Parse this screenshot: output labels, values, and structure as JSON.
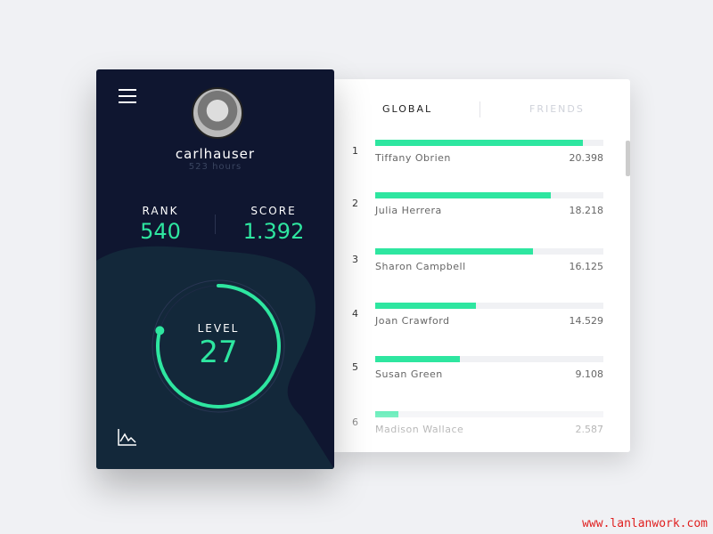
{
  "profile": {
    "username": "carlhauser",
    "hours": "523 hours",
    "rank_label": "RANK",
    "rank": "540",
    "score_label": "SCORE",
    "score": "1.392",
    "level_label": "LEVEL",
    "level": "27",
    "level_progress": 0.8
  },
  "tabs": {
    "global": "GLOBAL",
    "friends": "FRIENDS"
  },
  "colors": {
    "accent": "#2ee6a0",
    "panel": "#0f1630"
  },
  "leaderboard": [
    {
      "rank": "1",
      "name": "Tiffany Obrien",
      "score": "20.398",
      "progress": 0.91
    },
    {
      "rank": "2",
      "name": "Julia Herrera",
      "score": "18.218",
      "progress": 0.77
    },
    {
      "rank": "3",
      "name": "Sharon Campbell",
      "score": "16.125",
      "progress": 0.69
    },
    {
      "rank": "4",
      "name": "Joan Crawford",
      "score": "14.529",
      "progress": 0.44
    },
    {
      "rank": "5",
      "name": "Susan Green",
      "score": "9.108",
      "progress": 0.37
    },
    {
      "rank": "6",
      "name": "Madison Wallace",
      "score": "2.587",
      "progress": 0.1
    }
  ],
  "watermark": "www.lanlanwork.com"
}
